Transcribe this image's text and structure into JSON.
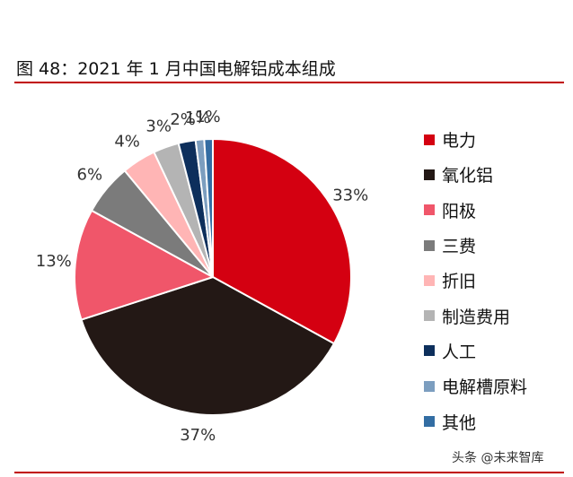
{
  "title": "图 48：2021 年 1 月中国电解铝成本组成",
  "watermark": "头条 @未来智库",
  "chart_data": {
    "type": "pie",
    "title": "图 48：2021 年 1 月中国电解铝成本组成",
    "legend_position": "right",
    "start_angle": "12 o'clock",
    "direction": "clockwise",
    "slices": [
      {
        "name": "电力",
        "value": 33,
        "label": "33%",
        "color": "#d40011"
      },
      {
        "name": "氧化铝",
        "value": 37,
        "label": "37%",
        "color": "#231815"
      },
      {
        "name": "阳极",
        "value": 13,
        "label": "13%",
        "color": "#f0566a"
      },
      {
        "name": "三费",
        "value": 6,
        "label": "6%",
        "color": "#7b7b7b"
      },
      {
        "name": "折旧",
        "value": 4,
        "label": "4%",
        "color": "#ffb5b5"
      },
      {
        "name": "制造费用",
        "value": 3,
        "label": "3%",
        "color": "#b4b4b4"
      },
      {
        "name": "人工",
        "value": 2,
        "label": "2%",
        "color": "#0d2f5c"
      },
      {
        "name": "电解槽原料",
        "value": 1,
        "label": "1%",
        "color": "#7c9ebf"
      },
      {
        "name": "其他",
        "value": 1,
        "label": "1%",
        "color": "#336da3"
      }
    ]
  }
}
